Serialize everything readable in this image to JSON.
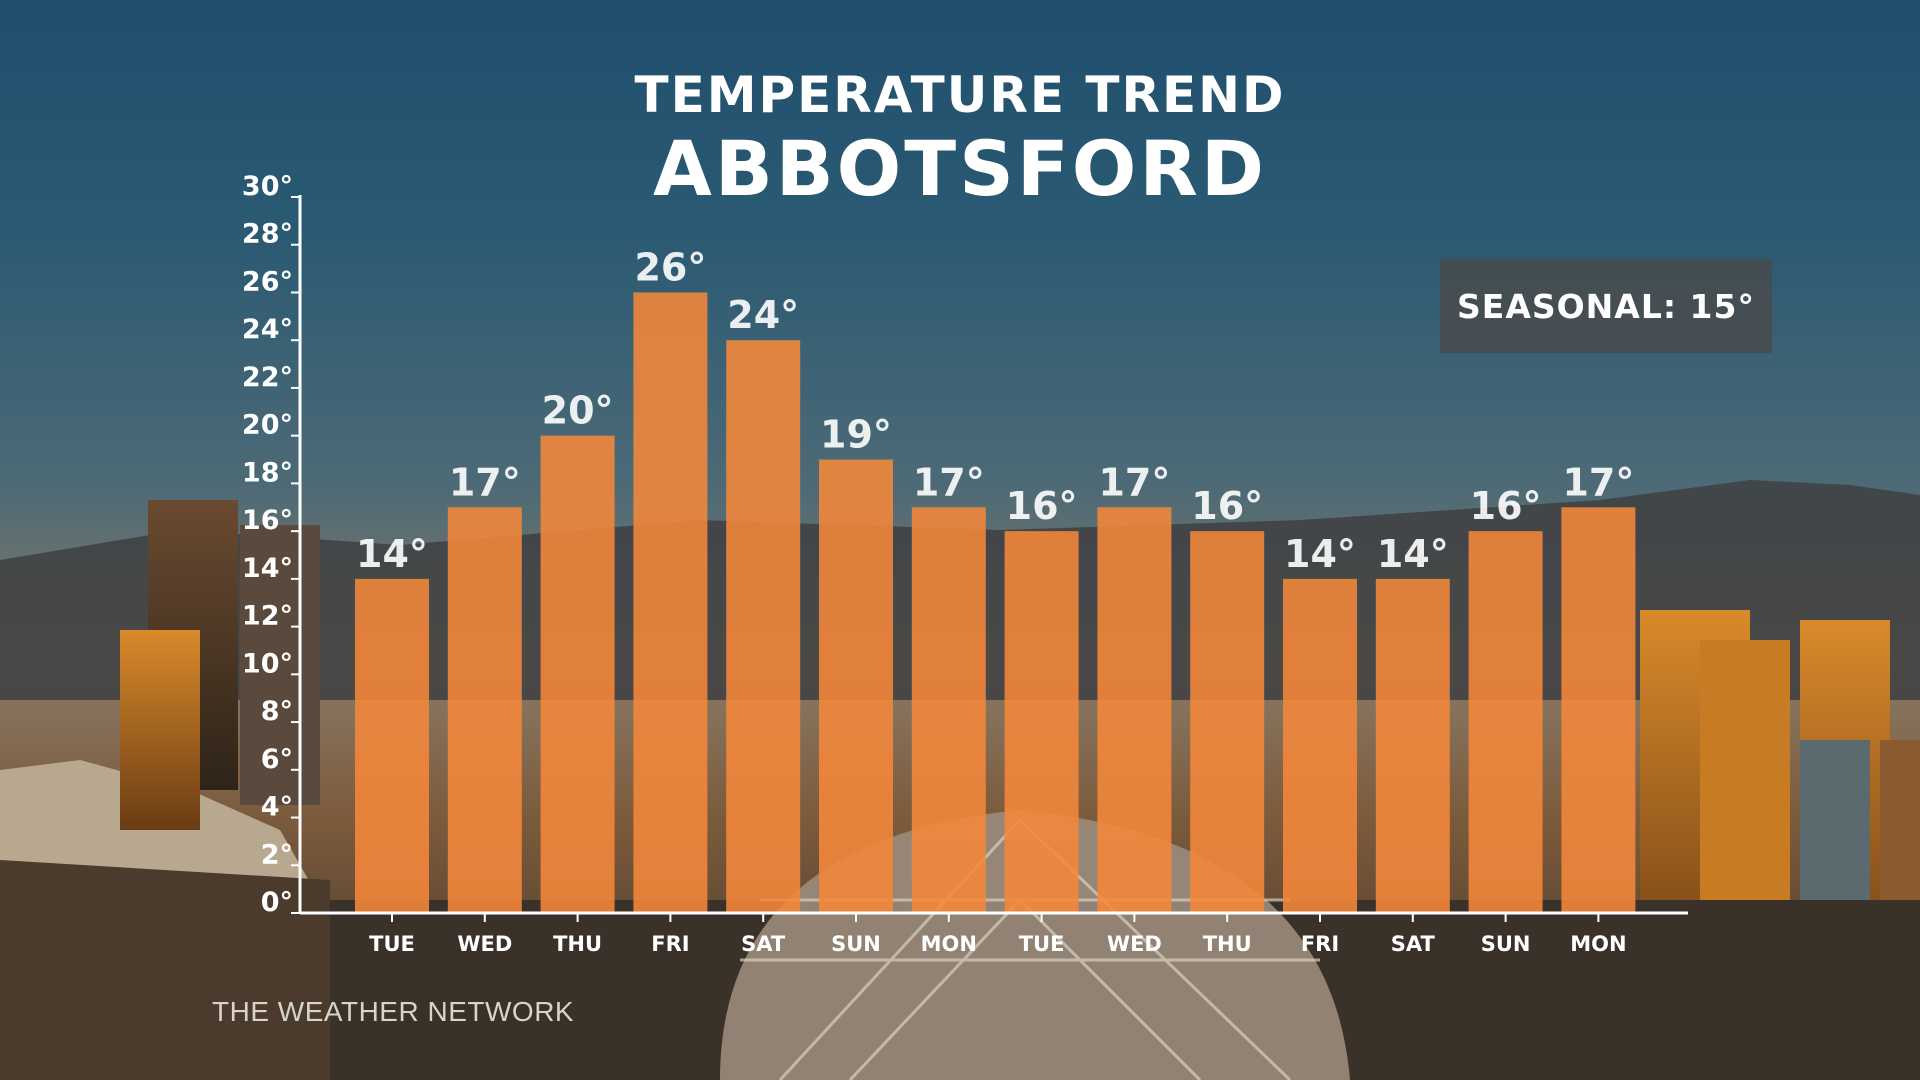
{
  "title": "TEMPERATURE TREND",
  "subtitle": "ABBOTSFORD",
  "seasonal_label": "SEASONAL: 15°",
  "brand": "THE WEATHER NETWORK",
  "colors": {
    "bar": "#f5883a",
    "axis": "#ffffff",
    "text": "#ffffff"
  },
  "chart_data": {
    "type": "bar",
    "title": "TEMPERATURE TREND",
    "subtitle": "ABBOTSFORD",
    "categories": [
      "TUE",
      "WED",
      "THU",
      "FRI",
      "SAT",
      "SUN",
      "MON",
      "TUE",
      "WED",
      "THU",
      "FRI",
      "SAT",
      "SUN",
      "MON"
    ],
    "values": [
      14,
      17,
      20,
      26,
      24,
      19,
      17,
      16,
      17,
      16,
      14,
      14,
      16,
      17
    ],
    "value_labels": [
      "14°",
      "17°",
      "20°",
      "26°",
      "24°",
      "19°",
      "17°",
      "16°",
      "17°",
      "16°",
      "14°",
      "14°",
      "16°",
      "17°"
    ],
    "ylim": [
      0,
      30
    ],
    "yticks": [
      0,
      2,
      4,
      6,
      8,
      10,
      12,
      14,
      16,
      18,
      20,
      22,
      24,
      26,
      28,
      30
    ],
    "ytick_labels": [
      "0°",
      "2°",
      "4°",
      "6°",
      "8°",
      "10°",
      "12°",
      "14°",
      "16°",
      "18°",
      "20°",
      "22°",
      "24°",
      "26°",
      "28°",
      "30°"
    ],
    "xlabel": "",
    "ylabel": "",
    "grid": false,
    "legend": "none",
    "annotations": [
      "SEASONAL: 15°"
    ]
  }
}
